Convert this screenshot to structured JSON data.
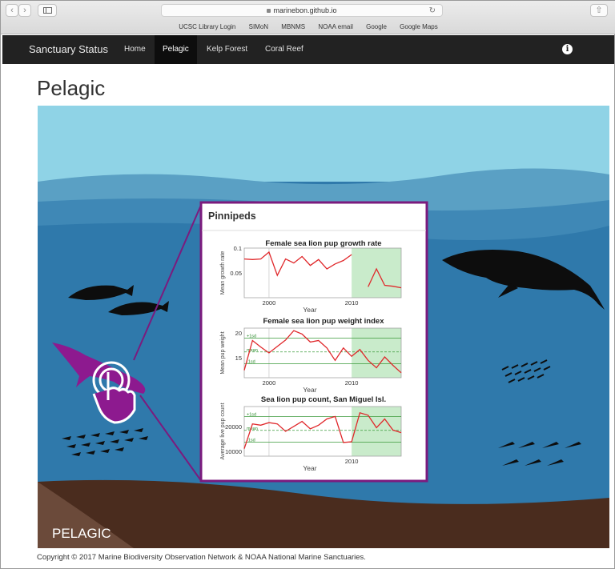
{
  "browser": {
    "url": "marinebon.github.io",
    "favorites": [
      "UCSC Library Login",
      "SIMoN",
      "MBNMS",
      "NOAA email",
      "Google",
      "Google Maps"
    ]
  },
  "navbar": {
    "brand": "Sanctuary Status",
    "links": [
      "Home",
      "Pelagic",
      "Kelp Forest",
      "Coral Reef"
    ],
    "active": "Pelagic"
  },
  "page": {
    "title": "Pelagic",
    "scene_label": "PELAGIC",
    "footer": "Copyright © 2017 Marine Biodiversity Observation Network & NOAA National Marine Sanctuaries."
  },
  "popup": {
    "title": "Pinnipeds",
    "border_color": "#7b1b7e"
  },
  "colors": {
    "sky": "#8fd3e6",
    "water_top": "#5aa0c4",
    "water": "#2f79ab",
    "seafloor": "#4a2c1e",
    "highlight": "#8d1a8f",
    "line": "#e0282b",
    "shade": "#c9ebcb"
  },
  "chart_data": [
    {
      "type": "line",
      "title": "Female sea lion pup growth rate",
      "xlabel": "Year",
      "ylabel": "Mean growth rate",
      "x_ticks": [
        2000,
        2010
      ],
      "y_ticks": [
        0.05,
        0.1
      ],
      "xlim": [
        1997,
        2016
      ],
      "ylim": [
        0.0,
        0.1
      ],
      "shaded_from": 2010,
      "series": [
        {
          "x": [
            1997,
            1998,
            1999,
            2000,
            2001,
            2002,
            2003,
            2004,
            2005,
            2006,
            2007,
            2008,
            2009,
            2010
          ],
          "y": [
            0.078,
            0.077,
            0.078,
            0.092,
            0.045,
            0.078,
            0.07,
            0.083,
            0.065,
            0.077,
            0.058,
            0.068,
            0.075,
            0.087
          ]
        },
        {
          "x": [
            2012,
            2013,
            2014,
            2015,
            2016
          ],
          "y": [
            0.022,
            0.058,
            0.025,
            0.023,
            0.02
          ]
        }
      ]
    },
    {
      "type": "line",
      "title": "Female sea lion pup weight index",
      "xlabel": "Year",
      "ylabel": "Mean pup weight",
      "x_ticks": [
        2000,
        2010
      ],
      "y_ticks": [
        15,
        20
      ],
      "ylim": [
        11,
        21
      ],
      "shaded_from": 2010,
      "bands": {
        "plus": "+1sd",
        "mean": "mean",
        "minus": "-1sd"
      },
      "series": [
        {
          "x": [
            1997,
            1998,
            1999,
            2000,
            2001,
            2002,
            2003,
            2004,
            2005,
            2006,
            2007,
            2008,
            2009,
            2010,
            2011,
            2012,
            2013,
            2014,
            2015,
            2016
          ],
          "y": [
            12.5,
            18.5,
            17.2,
            16.0,
            17.3,
            18.6,
            20.5,
            19.8,
            18.2,
            18.5,
            17.0,
            14.5,
            17.0,
            15.3,
            16.7,
            14.5,
            13.0,
            15.2,
            13.5,
            12.0
          ]
        }
      ]
    },
    {
      "type": "line",
      "title": "Sea lion pup count, San Miguel Isl.",
      "xlabel": "Year",
      "ylabel": "Average live pup count",
      "x_ticks": [
        2010
      ],
      "y_ticks": [
        10000,
        20000
      ],
      "ylim": [
        8000,
        28000
      ],
      "shaded_from": 2010,
      "bands": {
        "plus": "+1sd",
        "mean": "mean",
        "minus": "-1sd"
      },
      "series": [
        {
          "x": [
            1997,
            1998,
            1999,
            2000,
            2001,
            2002,
            2003,
            2004,
            2005,
            2006,
            2007,
            2008,
            2009,
            2010,
            2011,
            2012,
            2013,
            2014,
            2015,
            2016
          ],
          "y": [
            11000,
            21000,
            20500,
            21500,
            21000,
            18000,
            20000,
            22000,
            19000,
            20500,
            23000,
            24000,
            13500,
            13800,
            25500,
            24500,
            19500,
            23000,
            18500,
            17500
          ]
        }
      ]
    }
  ]
}
